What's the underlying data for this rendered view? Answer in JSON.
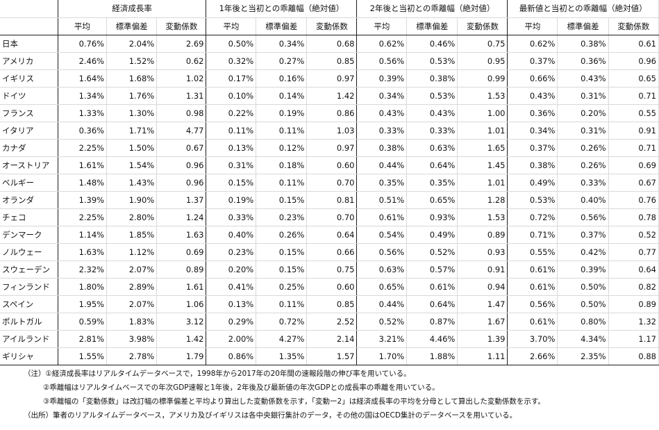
{
  "groups": [
    "経済成長率",
    "1年後と当初との乖離幅（絶対値）",
    "2年後と当初との乖離幅（絶対値）",
    "最新値と当初との乖離幅（絶対値）"
  ],
  "subheaders": [
    "平均",
    "標準偏差",
    "変動係数"
  ],
  "rows": [
    {
      "country": "日本",
      "v": [
        "0.76%",
        "2.04%",
        "2.69",
        "0.50%",
        "0.34%",
        "0.68",
        "0.62%",
        "0.46%",
        "0.75",
        "0.62%",
        "0.38%",
        "0.61"
      ]
    },
    {
      "country": "アメリカ",
      "v": [
        "2.46%",
        "1.52%",
        "0.62",
        "0.32%",
        "0.27%",
        "0.85",
        "0.56%",
        "0.53%",
        "0.95",
        "0.37%",
        "0.36%",
        "0.96"
      ]
    },
    {
      "country": "イギリス",
      "v": [
        "1.64%",
        "1.68%",
        "1.02",
        "0.17%",
        "0.16%",
        "0.97",
        "0.39%",
        "0.38%",
        "0.99",
        "0.66%",
        "0.43%",
        "0.65"
      ]
    },
    {
      "country": "ドイツ",
      "v": [
        "1.34%",
        "1.76%",
        "1.31",
        "0.10%",
        "0.14%",
        "1.42",
        "0.34%",
        "0.53%",
        "1.53",
        "0.43%",
        "0.31%",
        "0.71"
      ]
    },
    {
      "country": "フランス",
      "v": [
        "1.33%",
        "1.30%",
        "0.98",
        "0.22%",
        "0.19%",
        "0.86",
        "0.43%",
        "0.43%",
        "1.00",
        "0.36%",
        "0.20%",
        "0.55"
      ]
    },
    {
      "country": "イタリア",
      "v": [
        "0.36%",
        "1.71%",
        "4.77",
        "0.11%",
        "0.11%",
        "1.03",
        "0.33%",
        "0.33%",
        "1.01",
        "0.34%",
        "0.31%",
        "0.91"
      ]
    },
    {
      "country": "カナダ",
      "v": [
        "2.25%",
        "1.50%",
        "0.67",
        "0.13%",
        "0.12%",
        "0.97",
        "0.38%",
        "0.63%",
        "1.65",
        "0.37%",
        "0.26%",
        "0.71"
      ]
    },
    {
      "country": "オーストリア",
      "v": [
        "1.61%",
        "1.54%",
        "0.96",
        "0.31%",
        "0.18%",
        "0.60",
        "0.44%",
        "0.64%",
        "1.45",
        "0.38%",
        "0.26%",
        "0.69"
      ]
    },
    {
      "country": "ベルギー",
      "v": [
        "1.48%",
        "1.43%",
        "0.96",
        "0.15%",
        "0.11%",
        "0.70",
        "0.35%",
        "0.35%",
        "1.01",
        "0.49%",
        "0.33%",
        "0.67"
      ]
    },
    {
      "country": "オランダ",
      "v": [
        "1.39%",
        "1.90%",
        "1.37",
        "0.19%",
        "0.15%",
        "0.81",
        "0.51%",
        "0.65%",
        "1.28",
        "0.53%",
        "0.40%",
        "0.76"
      ]
    },
    {
      "country": "チェコ",
      "v": [
        "2.25%",
        "2.80%",
        "1.24",
        "0.33%",
        "0.23%",
        "0.70",
        "0.61%",
        "0.93%",
        "1.53",
        "0.72%",
        "0.56%",
        "0.78"
      ]
    },
    {
      "country": "デンマーク",
      "v": [
        "1.14%",
        "1.85%",
        "1.63",
        "0.40%",
        "0.26%",
        "0.64",
        "0.54%",
        "0.49%",
        "0.89",
        "0.71%",
        "0.37%",
        "0.52"
      ]
    },
    {
      "country": "ノルウェー",
      "v": [
        "1.63%",
        "1.12%",
        "0.69",
        "0.23%",
        "0.15%",
        "0.66",
        "0.56%",
        "0.52%",
        "0.93",
        "0.55%",
        "0.42%",
        "0.77"
      ]
    },
    {
      "country": "スウェーデン",
      "v": [
        "2.32%",
        "2.07%",
        "0.89",
        "0.20%",
        "0.15%",
        "0.75",
        "0.63%",
        "0.57%",
        "0.91",
        "0.61%",
        "0.39%",
        "0.64"
      ]
    },
    {
      "country": "フィンランド",
      "v": [
        "1.80%",
        "2.89%",
        "1.61",
        "0.41%",
        "0.25%",
        "0.60",
        "0.65%",
        "0.61%",
        "0.94",
        "0.61%",
        "0.50%",
        "0.82"
      ]
    },
    {
      "country": "スペイン",
      "v": [
        "1.95%",
        "2.07%",
        "1.06",
        "0.13%",
        "0.11%",
        "0.85",
        "0.44%",
        "0.64%",
        "1.47",
        "0.56%",
        "0.50%",
        "0.89"
      ]
    },
    {
      "country": "ポルトガル",
      "v": [
        "0.59%",
        "1.83%",
        "3.12",
        "0.29%",
        "0.72%",
        "2.52",
        "0.52%",
        "0.87%",
        "1.67",
        "0.61%",
        "0.80%",
        "1.32"
      ]
    },
    {
      "country": "アイルランド",
      "v": [
        "2.81%",
        "3.98%",
        "1.42",
        "2.00%",
        "4.27%",
        "2.14",
        "3.21%",
        "4.46%",
        "1.39",
        "3.70%",
        "4.34%",
        "1.17"
      ]
    },
    {
      "country": "ギリシャ",
      "v": [
        "1.55%",
        "2.78%",
        "1.79",
        "0.86%",
        "1.35%",
        "1.57",
        "1.70%",
        "1.88%",
        "1.11",
        "2.66%",
        "2.35%",
        "0.88"
      ]
    }
  ],
  "notes": {
    "note1": "（注）①経済成長率はリアルタイムデータベースで，1998年から2017年の20年間の速報段階の伸び率を用いている。",
    "note2": "②乖離幅はリアルタイムベースでの年次GDP速報と1年後，2年後及び最新値の年次GDPとの成長率の乖離を用いている。",
    "note3": "③乖離幅の「変動係数」は改訂幅の標準偏差と平均より算出した変動係数を示す，「変動ー2」は経済成長率の平均を分母として算出した変動係数を示す。",
    "source": "（出所）筆者のリアルタイムデータベース，アメリカ及びイギリスは各中央銀行集計のデータ，その他の国はOECD集計のデータベースを用いている。"
  }
}
